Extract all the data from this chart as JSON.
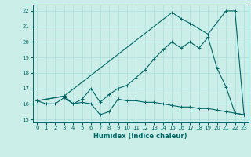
{
  "title": "",
  "xlabel": "Humidex (Indice chaleur)",
  "xlim": [
    -0.5,
    23.5
  ],
  "ylim": [
    14.8,
    22.4
  ],
  "xticks": [
    0,
    1,
    2,
    3,
    4,
    5,
    6,
    7,
    8,
    9,
    10,
    11,
    12,
    13,
    14,
    15,
    16,
    17,
    18,
    19,
    20,
    21,
    22,
    23
  ],
  "yticks": [
    15,
    16,
    17,
    18,
    19,
    20,
    21,
    22
  ],
  "bg_color": "#cceee8",
  "line_color": "#006666",
  "grid_color": "#aaddda",
  "line1_x": [
    0,
    1,
    2,
    3,
    4,
    5,
    6,
    7,
    8,
    9,
    10,
    11,
    12,
    13,
    14,
    15,
    16,
    17,
    18,
    19,
    20,
    21,
    22,
    23
  ],
  "line1_y": [
    16.2,
    16.0,
    16.0,
    16.4,
    16.0,
    16.1,
    16.0,
    15.3,
    15.5,
    16.3,
    16.2,
    16.2,
    16.1,
    16.1,
    16.0,
    15.9,
    15.8,
    15.8,
    15.7,
    15.7,
    15.6,
    15.5,
    15.4,
    15.3
  ],
  "line2_x": [
    0,
    3,
    4,
    5,
    6,
    7,
    8,
    9,
    10,
    11,
    12,
    13,
    14,
    15,
    16,
    17,
    18,
    19,
    20,
    21,
    22,
    23
  ],
  "line2_y": [
    16.2,
    16.5,
    16.0,
    16.3,
    17.0,
    16.1,
    16.6,
    17.0,
    17.2,
    17.7,
    18.2,
    18.9,
    19.5,
    20.0,
    19.6,
    20.0,
    19.6,
    20.3,
    18.3,
    17.1,
    15.4,
    15.3
  ],
  "line3_x": [
    0,
    3,
    15,
    16,
    17,
    19,
    21,
    22,
    23
  ],
  "line3_y": [
    16.2,
    16.5,
    21.9,
    21.5,
    21.2,
    20.5,
    22.0,
    22.0,
    15.3
  ]
}
